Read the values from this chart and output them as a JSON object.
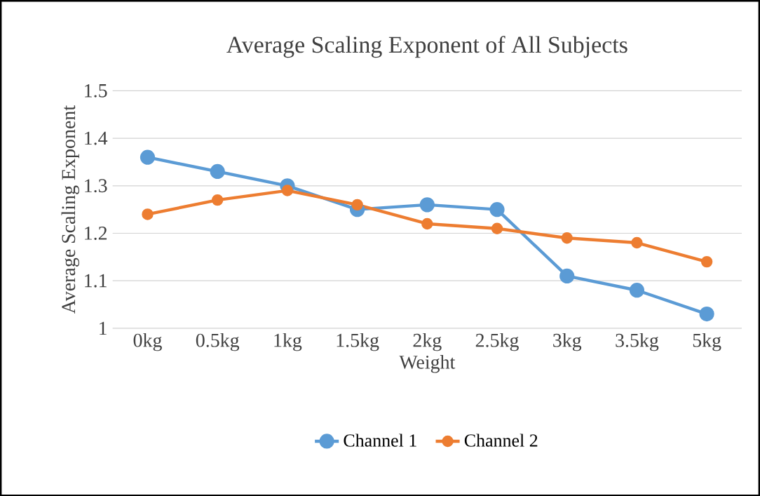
{
  "chart_data": {
    "type": "line",
    "title": "Average  Scaling  Exponent of All Subjects",
    "xlabel": "Weight",
    "ylabel": "Average  Scaling  Exponent",
    "categories": [
      "0kg",
      "0.5kg",
      "1kg",
      "1.5kg",
      "2kg",
      "2.5kg",
      "3kg",
      "3.5kg",
      "5kg"
    ],
    "series": [
      {
        "name": "Channel 1",
        "color": "#5b9bd5",
        "values": [
          1.36,
          1.33,
          1.3,
          1.25,
          1.26,
          1.25,
          1.11,
          1.08,
          1.03
        ]
      },
      {
        "name": "Channel 2",
        "color": "#ed7d31",
        "values": [
          1.24,
          1.27,
          1.29,
          1.26,
          1.22,
          1.21,
          1.19,
          1.18,
          1.14
        ]
      }
    ],
    "ylim": [
      1,
      1.5
    ],
    "yticks": [
      1,
      1.1,
      1.2,
      1.3,
      1.4,
      1.5
    ],
    "grid": "y",
    "legend": "bottom",
    "marker": "circle",
    "line_style": "solid"
  }
}
